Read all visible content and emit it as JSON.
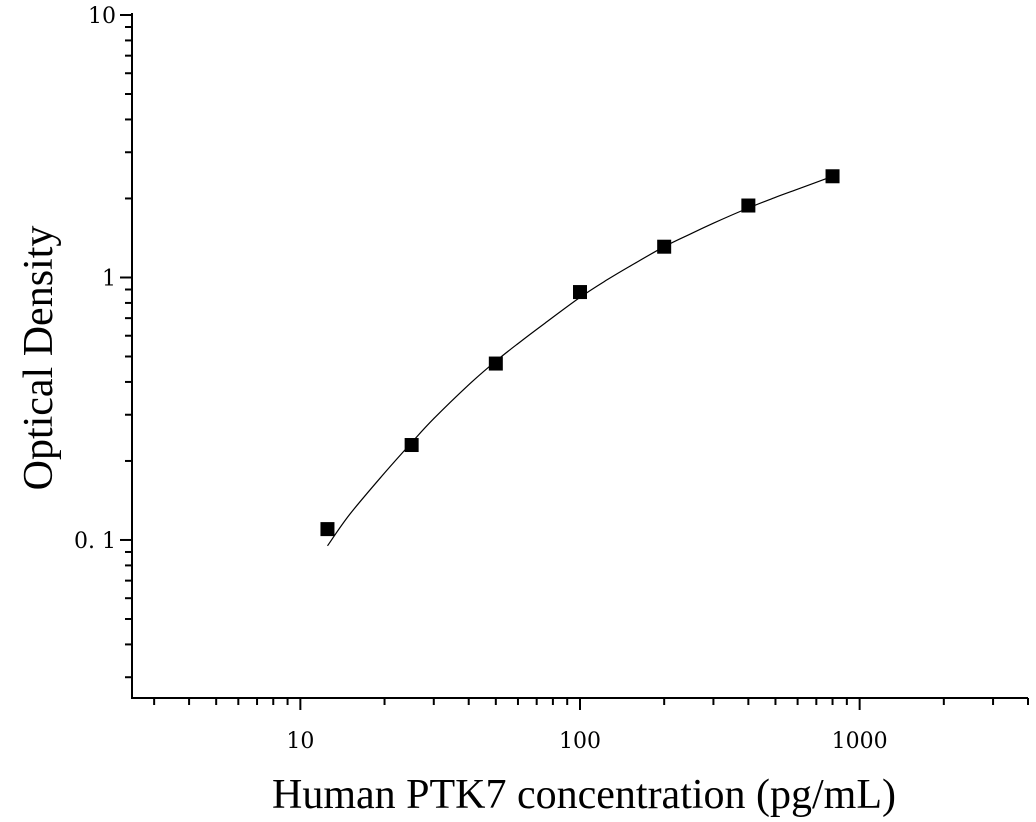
{
  "chart_data": {
    "type": "scatter",
    "title": "",
    "xlabel": "Human PTK7 concentration (pg/mL)",
    "ylabel": "Optical Density",
    "xscale": "log",
    "yscale": "log",
    "xlim": [
      2.5,
      4000
    ],
    "ylim": [
      0.025,
      10
    ],
    "x_ticks": [
      {
        "value": 10,
        "label": "10"
      },
      {
        "value": 100,
        "label": "100"
      },
      {
        "value": 1000,
        "label": "1000"
      }
    ],
    "y_ticks": [
      {
        "value": 0.1,
        "label": "0. 1"
      },
      {
        "value": 1,
        "label": "1"
      },
      {
        "value": 10,
        "label": "10"
      }
    ],
    "grid": false,
    "legend": "none",
    "series": [
      {
        "marker": "square",
        "color": "#000000",
        "x": [
          12.5,
          25,
          50,
          100,
          200,
          400,
          800
        ],
        "y": [
          0.11,
          0.23,
          0.47,
          0.88,
          1.31,
          1.88,
          2.43
        ]
      }
    ],
    "fit_curve": {
      "color": "#000000",
      "x": [
        12.5,
        15,
        20,
        25,
        30,
        40,
        50,
        60,
        75,
        100,
        125,
        150,
        200,
        250,
        300,
        400,
        500,
        600,
        800
      ],
      "y": [
        0.095,
        0.125,
        0.18,
        0.235,
        0.29,
        0.39,
        0.48,
        0.56,
        0.67,
        0.84,
        0.98,
        1.1,
        1.31,
        1.47,
        1.61,
        1.84,
        2.02,
        2.17,
        2.43
      ]
    }
  }
}
